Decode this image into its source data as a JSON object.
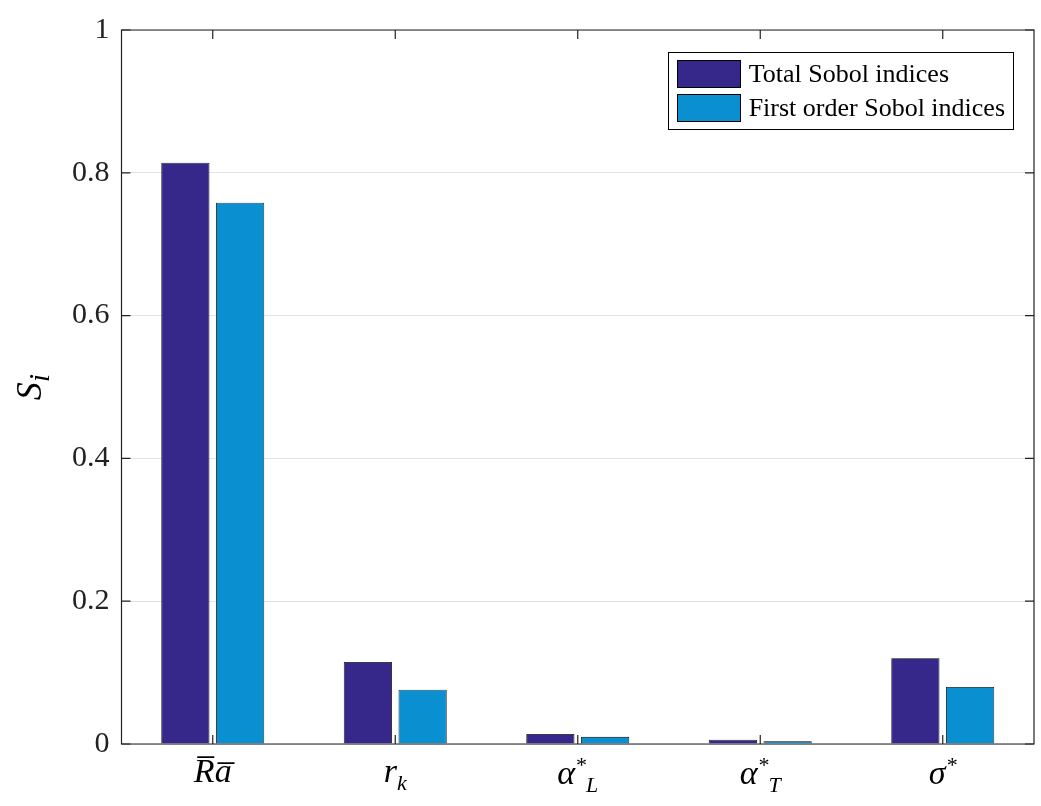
{
  "chart_data": {
    "type": "bar",
    "ylabel": "S$_{i}$",
    "categories": [
      "R̅a̅",
      "r$_{k}$",
      "α$^{*}$$_{L}$",
      "α$^{*}$$_{T}$",
      "σ$^{*}$"
    ],
    "series": [
      {
        "name": "Total Sobol indices",
        "color": "#35288a",
        "values": [
          0.814,
          0.115,
          0.014,
          0.006,
          0.12
        ]
      },
      {
        "name": "First order Sobol indices",
        "color": "#0a8fd0",
        "values": [
          0.758,
          0.076,
          0.01,
          0.004,
          0.08
        ]
      }
    ],
    "ylim": [
      0,
      1
    ],
    "yticks": [
      0,
      0.2,
      0.4,
      0.6,
      0.8,
      1
    ],
    "grid": "y",
    "legend": "top right"
  }
}
